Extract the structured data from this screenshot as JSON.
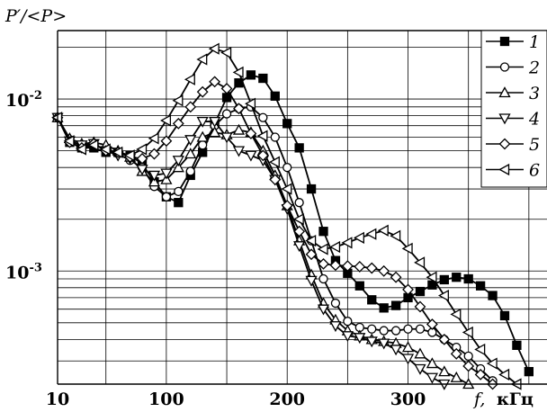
{
  "chart_data": {
    "type": "line",
    "ylabel": "P′/<P>",
    "xlabel_var": "f,",
    "xlabel_unit": "кГц",
    "y_scale": "log",
    "xlim": [
      10,
      415
    ],
    "ylim": [
      0.00022,
      0.025
    ],
    "x_ticks": [
      {
        "value": 10,
        "label": "10"
      },
      {
        "value": 100,
        "label": "100"
      },
      {
        "value": 200,
        "label": "200"
      },
      {
        "value": 300,
        "label": "300"
      }
    ],
    "y_ticks": [
      {
        "value": 0.01,
        "base": "10",
        "exp": "-2"
      },
      {
        "value": 0.001,
        "base": "10",
        "exp": "-3"
      }
    ],
    "grid": true,
    "legend_position": "top-right",
    "series": [
      {
        "name": "1",
        "marker": "square-filled",
        "points": [
          [
            10,
            0.0078
          ],
          [
            20,
            0.0056
          ],
          [
            30,
            0.0052
          ],
          [
            40,
            0.0052
          ],
          [
            50,
            0.0049
          ],
          [
            60,
            0.0049
          ],
          [
            70,
            0.0047
          ],
          [
            80,
            0.0042
          ],
          [
            90,
            0.0033
          ],
          [
            100,
            0.0027
          ],
          [
            110,
            0.0025
          ],
          [
            120,
            0.0036
          ],
          [
            130,
            0.0049
          ],
          [
            140,
            0.0072
          ],
          [
            150,
            0.0102
          ],
          [
            160,
            0.0124
          ],
          [
            170,
            0.0138
          ],
          [
            180,
            0.0132
          ],
          [
            190,
            0.0104
          ],
          [
            200,
            0.0072
          ],
          [
            210,
            0.0052
          ],
          [
            220,
            0.003
          ],
          [
            230,
            0.0017
          ],
          [
            240,
            0.00115
          ],
          [
            250,
            0.00097
          ],
          [
            260,
            0.00082
          ],
          [
            270,
            0.00068
          ],
          [
            280,
            0.00061
          ],
          [
            290,
            0.00063
          ],
          [
            300,
            0.0007
          ],
          [
            310,
            0.00076
          ],
          [
            320,
            0.00083
          ],
          [
            330,
            0.00089
          ],
          [
            340,
            0.00092
          ],
          [
            350,
            0.0009
          ],
          [
            360,
            0.00082
          ],
          [
            370,
            0.00072
          ],
          [
            380,
            0.00055
          ],
          [
            390,
            0.00037
          ],
          [
            400,
            0.00026
          ],
          [
            410,
            0.00021
          ]
        ]
      },
      {
        "name": "2",
        "marker": "circle-open",
        "points": [
          [
            10,
            0.0078
          ],
          [
            20,
            0.0058
          ],
          [
            30,
            0.0053
          ],
          [
            40,
            0.0055
          ],
          [
            50,
            0.005
          ],
          [
            60,
            0.0048
          ],
          [
            70,
            0.0044
          ],
          [
            80,
            0.004
          ],
          [
            90,
            0.0031
          ],
          [
            100,
            0.0027
          ],
          [
            110,
            0.0029
          ],
          [
            120,
            0.0038
          ],
          [
            130,
            0.0054
          ],
          [
            140,
            0.007
          ],
          [
            150,
            0.0082
          ],
          [
            160,
            0.0088
          ],
          [
            170,
            0.009
          ],
          [
            180,
            0.0078
          ],
          [
            190,
            0.006
          ],
          [
            200,
            0.004
          ],
          [
            210,
            0.0025
          ],
          [
            220,
            0.0015
          ],
          [
            230,
            0.0009
          ],
          [
            240,
            0.00065
          ],
          [
            250,
            0.00051
          ],
          [
            260,
            0.00047
          ],
          [
            270,
            0.00046
          ],
          [
            280,
            0.00045
          ],
          [
            290,
            0.00045
          ],
          [
            300,
            0.00046
          ],
          [
            310,
            0.00046
          ],
          [
            320,
            0.00044
          ],
          [
            330,
            0.0004
          ],
          [
            340,
            0.00036
          ],
          [
            350,
            0.00032
          ],
          [
            360,
            0.00027
          ],
          [
            370,
            0.00023
          ]
        ]
      },
      {
        "name": "3",
        "marker": "triangle-up-open",
        "points": [
          [
            10,
            0.0078
          ],
          [
            20,
            0.0059
          ],
          [
            30,
            0.0055
          ],
          [
            40,
            0.0056
          ],
          [
            50,
            0.0054
          ],
          [
            60,
            0.005
          ],
          [
            70,
            0.0046
          ],
          [
            80,
            0.0038
          ],
          [
            90,
            0.0033
          ],
          [
            100,
            0.0034
          ],
          [
            110,
            0.004
          ],
          [
            120,
            0.0048
          ],
          [
            130,
            0.006
          ],
          [
            140,
            0.0064
          ],
          [
            150,
            0.0062
          ],
          [
            160,
            0.0066
          ],
          [
            170,
            0.0064
          ],
          [
            180,
            0.005
          ],
          [
            190,
            0.0036
          ],
          [
            200,
            0.0024
          ],
          [
            210,
            0.0015
          ],
          [
            220,
            0.00095
          ],
          [
            230,
            0.00065
          ],
          [
            240,
            0.00052
          ],
          [
            250,
            0.00045
          ],
          [
            260,
            0.00042
          ],
          [
            270,
            0.0004
          ],
          [
            280,
            0.00039
          ],
          [
            290,
            0.00038
          ],
          [
            300,
            0.00036
          ],
          [
            310,
            0.00033
          ],
          [
            320,
            0.00029
          ],
          [
            330,
            0.00026
          ],
          [
            340,
            0.00024
          ],
          [
            350,
            0.00022
          ]
        ]
      },
      {
        "name": "4",
        "marker": "triangle-down-open",
        "points": [
          [
            10,
            0.0078
          ],
          [
            20,
            0.0057
          ],
          [
            30,
            0.0054
          ],
          [
            40,
            0.0055
          ],
          [
            50,
            0.005
          ],
          [
            60,
            0.0047
          ],
          [
            70,
            0.0045
          ],
          [
            80,
            0.0039
          ],
          [
            90,
            0.0036
          ],
          [
            100,
            0.0037
          ],
          [
            110,
            0.0044
          ],
          [
            120,
            0.0058
          ],
          [
            130,
            0.0074
          ],
          [
            140,
            0.0074
          ],
          [
            150,
            0.006
          ],
          [
            160,
            0.005
          ],
          [
            170,
            0.0047
          ],
          [
            180,
            0.0044
          ],
          [
            190,
            0.0034
          ],
          [
            200,
            0.0023
          ],
          [
            210,
            0.0014
          ],
          [
            220,
            0.00088
          ],
          [
            230,
            0.0006
          ],
          [
            240,
            0.00048
          ],
          [
            250,
            0.00042
          ],
          [
            260,
            0.00041
          ],
          [
            270,
            0.00039
          ],
          [
            280,
            0.00038
          ],
          [
            290,
            0.00035
          ],
          [
            300,
            0.00031
          ],
          [
            310,
            0.00027
          ],
          [
            320,
            0.00024
          ],
          [
            330,
            0.00022
          ]
        ]
      },
      {
        "name": "5",
        "marker": "diamond-open",
        "points": [
          [
            10,
            0.0078
          ],
          [
            20,
            0.0056
          ],
          [
            30,
            0.0052
          ],
          [
            40,
            0.0055
          ],
          [
            50,
            0.005
          ],
          [
            60,
            0.0049
          ],
          [
            70,
            0.0046
          ],
          [
            80,
            0.0045
          ],
          [
            90,
            0.0048
          ],
          [
            100,
            0.0057
          ],
          [
            110,
            0.0072
          ],
          [
            120,
            0.009
          ],
          [
            130,
            0.011
          ],
          [
            140,
            0.0126
          ],
          [
            150,
            0.0115
          ],
          [
            160,
            0.0088
          ],
          [
            170,
            0.0063
          ],
          [
            180,
            0.0047
          ],
          [
            190,
            0.0034
          ],
          [
            200,
            0.0024
          ],
          [
            210,
            0.0017
          ],
          [
            220,
            0.00125
          ],
          [
            230,
            0.0011
          ],
          [
            240,
            0.00108
          ],
          [
            250,
            0.00107
          ],
          [
            260,
            0.00106
          ],
          [
            270,
            0.00104
          ],
          [
            280,
            0.001
          ],
          [
            290,
            0.00092
          ],
          [
            300,
            0.00078
          ],
          [
            310,
            0.00062
          ],
          [
            320,
            0.00049
          ],
          [
            330,
            0.0004
          ],
          [
            340,
            0.00033
          ],
          [
            350,
            0.00028
          ],
          [
            360,
            0.00025
          ],
          [
            370,
            0.00022
          ]
        ]
      },
      {
        "name": "6",
        "marker": "triangle-left-open",
        "points": [
          [
            10,
            0.0078
          ],
          [
            20,
            0.0057
          ],
          [
            30,
            0.0051
          ],
          [
            40,
            0.0054
          ],
          [
            50,
            0.0051
          ],
          [
            60,
            0.0049
          ],
          [
            70,
            0.0047
          ],
          [
            80,
            0.0051
          ],
          [
            90,
            0.0059
          ],
          [
            100,
            0.0075
          ],
          [
            110,
            0.0098
          ],
          [
            120,
            0.013
          ],
          [
            130,
            0.017
          ],
          [
            140,
            0.0196
          ],
          [
            150,
            0.0186
          ],
          [
            160,
            0.0143
          ],
          [
            170,
            0.0094
          ],
          [
            180,
            0.0061
          ],
          [
            190,
            0.0043
          ],
          [
            200,
            0.003
          ],
          [
            210,
            0.002
          ],
          [
            220,
            0.0015
          ],
          [
            230,
            0.00134
          ],
          [
            240,
            0.00138
          ],
          [
            250,
            0.00146
          ],
          [
            260,
            0.00156
          ],
          [
            270,
            0.00164
          ],
          [
            280,
            0.00172
          ],
          [
            290,
            0.0016
          ],
          [
            300,
            0.00135
          ],
          [
            310,
            0.00112
          ],
          [
            320,
            0.00092
          ],
          [
            330,
            0.00072
          ],
          [
            340,
            0.00056
          ],
          [
            350,
            0.00044
          ],
          [
            360,
            0.00035
          ],
          [
            370,
            0.00029
          ],
          [
            380,
            0.00025
          ],
          [
            390,
            0.00022
          ]
        ]
      }
    ]
  }
}
